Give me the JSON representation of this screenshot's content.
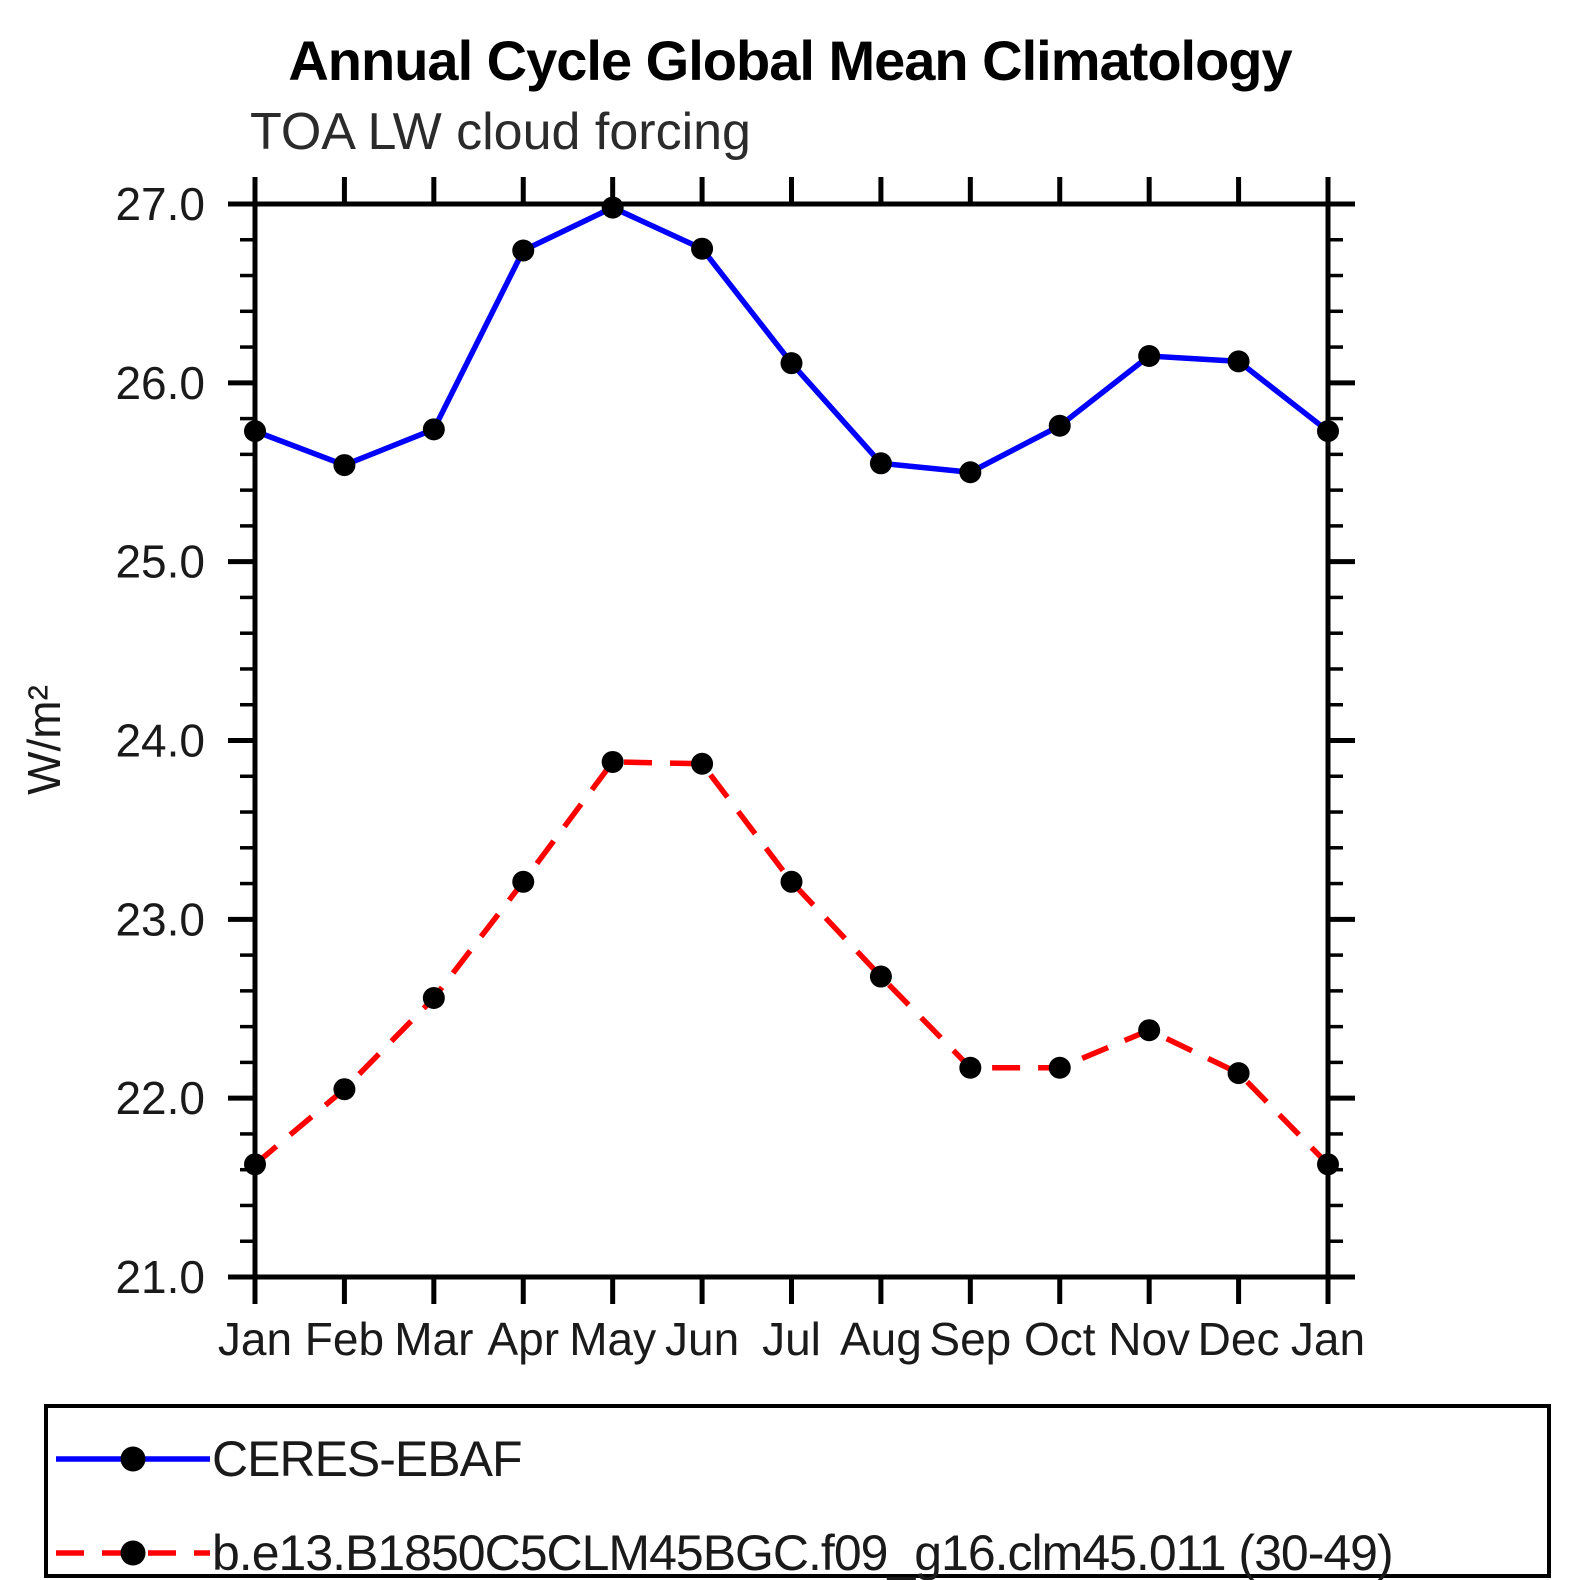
{
  "header": {
    "title": "Annual Cycle Global Mean Climatology",
    "subtitle": "TOA LW cloud forcing"
  },
  "chart_data": {
    "type": "line",
    "title": "Annual Cycle Global Mean Climatology",
    "subtitle": "TOA LW cloud forcing",
    "xlabel": "",
    "ylabel": "W/m²",
    "categories": [
      "Jan",
      "Feb",
      "Mar",
      "Apr",
      "May",
      "Jun",
      "Jul",
      "Aug",
      "Sep",
      "Oct",
      "Nov",
      "Dec",
      "Jan"
    ],
    "ylim": [
      21.0,
      27.0
    ],
    "ytick_major": [
      21.0,
      22.0,
      23.0,
      24.0,
      25.0,
      26.0,
      27.0
    ],
    "ytick_labels": [
      "21.0",
      "22.0",
      "23.0",
      "24.0",
      "25.0",
      "26.0",
      "27.0"
    ],
    "ytick_minor_step": 0.2,
    "grid": false,
    "legend_position": "bottom",
    "frame_color": "#000000",
    "marker": "filled-circle",
    "marker_color": "#000000",
    "series": [
      {
        "name": "CERES-EBAF",
        "color": "#0000ff",
        "style": "solid",
        "values": [
          25.73,
          25.54,
          25.74,
          26.74,
          26.98,
          26.75,
          26.11,
          25.55,
          25.5,
          25.76,
          26.15,
          26.12,
          25.73
        ]
      },
      {
        "name": "b.e13.B1850C5CLM45BGC.f09_g16.clm45.011 (30-49)",
        "color": "#ff0000",
        "style": "dashed",
        "values": [
          21.63,
          22.05,
          22.56,
          23.21,
          23.88,
          23.87,
          23.21,
          22.68,
          22.17,
          22.17,
          22.38,
          22.14,
          21.63
        ]
      }
    ]
  }
}
